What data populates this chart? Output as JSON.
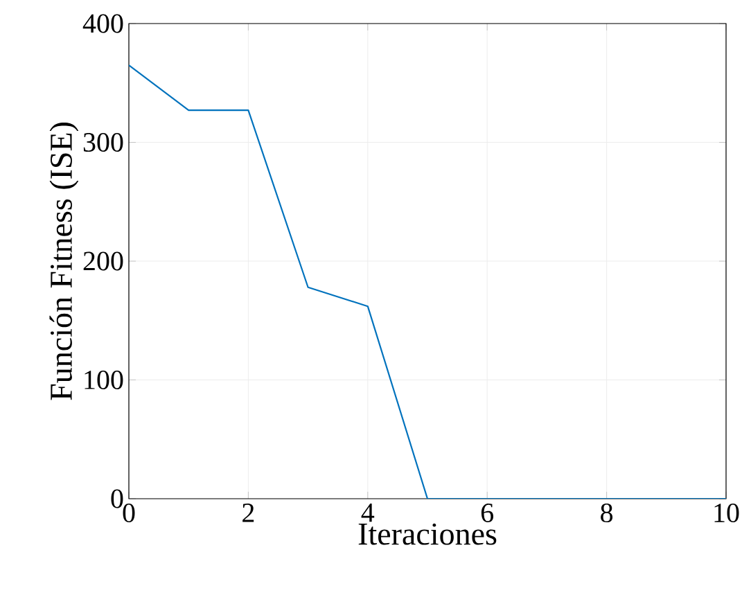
{
  "chart_data": {
    "type": "line",
    "xlabel": "Iteraciones",
    "ylabel": "Función Fitness (ISE)",
    "x": [
      0,
      1,
      2,
      3,
      4,
      5,
      6,
      7,
      8,
      9,
      10
    ],
    "series": [
      {
        "color": "#0072bd",
        "values": [
          365,
          327,
          327,
          178,
          162,
          0,
          0,
          0,
          0,
          0,
          0
        ]
      }
    ],
    "xlim": [
      0,
      10
    ],
    "ylim": [
      0,
      400
    ],
    "xticks": [
      0,
      2,
      4,
      6,
      8,
      10
    ],
    "yticks": [
      0,
      100,
      200,
      300,
      400
    ],
    "grid": true,
    "marker": "none",
    "line_style": "solid"
  }
}
